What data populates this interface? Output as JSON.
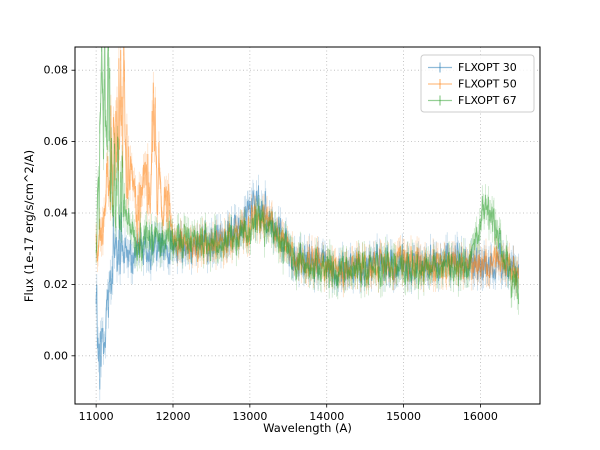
{
  "chart_data": {
    "type": "line",
    "title": "",
    "xlabel": "Wavelength (A)",
    "ylabel": "Flux (1e-17 erg/s/cm^2/A)",
    "xlim": [
      10725,
      16775
    ],
    "ylim": [
      -0.0135,
      0.0865
    ],
    "xticks": [
      11000,
      12000,
      13000,
      14000,
      15000,
      16000
    ],
    "xtick_labels": [
      "11000",
      "12000",
      "13000",
      "14000",
      "15000",
      "16000"
    ],
    "yticks": [
      0.0,
      0.02,
      0.04,
      0.06,
      0.08
    ],
    "ytick_labels": [
      "0.00",
      "0.02",
      "0.04",
      "0.06",
      "0.08"
    ],
    "x_range": [
      11000,
      16500
    ],
    "x_step": 8,
    "grid": true,
    "grid_color": "#b0b0b0",
    "background": "#ffffff",
    "legend_position": "upper right",
    "series": [
      {
        "name": "FLXOPT 30",
        "color": "#1f77b4",
        "alpha": 0.5,
        "noise": 0.0062,
        "err": 0.003,
        "noise_boost_until": 11350,
        "noise_boost": 2.2,
        "trend": [
          [
            11000,
            0.018
          ],
          [
            11060,
            -0.006
          ],
          [
            11120,
            0.006
          ],
          [
            11200,
            0.026
          ],
          [
            11350,
            0.03
          ],
          [
            11500,
            0.028
          ],
          [
            11700,
            0.03
          ],
          [
            12000,
            0.03
          ],
          [
            12300,
            0.031
          ],
          [
            12600,
            0.032
          ],
          [
            12900,
            0.036
          ],
          [
            13050,
            0.042
          ],
          [
            13200,
            0.04
          ],
          [
            13400,
            0.033
          ],
          [
            13600,
            0.027
          ],
          [
            13900,
            0.026
          ],
          [
            14200,
            0.024
          ],
          [
            14600,
            0.026
          ],
          [
            15000,
            0.026
          ],
          [
            15400,
            0.026
          ],
          [
            15800,
            0.026
          ],
          [
            16200,
            0.026
          ],
          [
            16500,
            0.025
          ]
        ]
      },
      {
        "name": "FLXOPT 50",
        "color": "#ff7f0e",
        "alpha": 0.5,
        "noise": 0.0055,
        "err": 0.003,
        "noise_boost_until": 11950,
        "noise_boost": 1.6,
        "trend": [
          [
            11000,
            0.028
          ],
          [
            11150,
            0.045
          ],
          [
            11300,
            0.074
          ],
          [
            11420,
            0.052
          ],
          [
            11550,
            0.038
          ],
          [
            11750,
            0.058
          ],
          [
            11850,
            0.048
          ],
          [
            12000,
            0.034
          ],
          [
            12200,
            0.031
          ],
          [
            12500,
            0.032
          ],
          [
            12800,
            0.033
          ],
          [
            13000,
            0.036
          ],
          [
            13200,
            0.04
          ],
          [
            13400,
            0.034
          ],
          [
            13600,
            0.027
          ],
          [
            13900,
            0.025
          ],
          [
            14200,
            0.024
          ],
          [
            14600,
            0.025
          ],
          [
            15000,
            0.026
          ],
          [
            15400,
            0.025
          ],
          [
            15800,
            0.025
          ],
          [
            16200,
            0.026
          ],
          [
            16500,
            0.023
          ]
        ]
      },
      {
        "name": "FLXOPT 67",
        "color": "#2ca02c",
        "alpha": 0.5,
        "noise": 0.0062,
        "err": 0.003,
        "noise_boost_until": 11350,
        "noise_boost": 2.0,
        "trend": [
          [
            11000,
            0.03
          ],
          [
            11080,
            0.068
          ],
          [
            11180,
            0.058
          ],
          [
            11300,
            0.044
          ],
          [
            11500,
            0.032
          ],
          [
            11700,
            0.033
          ],
          [
            12000,
            0.032
          ],
          [
            12300,
            0.032
          ],
          [
            12600,
            0.031
          ],
          [
            12900,
            0.034
          ],
          [
            13150,
            0.038
          ],
          [
            13400,
            0.032
          ],
          [
            13600,
            0.026
          ],
          [
            13900,
            0.025
          ],
          [
            14200,
            0.023
          ],
          [
            14600,
            0.025
          ],
          [
            15000,
            0.024
          ],
          [
            15400,
            0.025
          ],
          [
            15800,
            0.025
          ],
          [
            16100,
            0.042
          ],
          [
            16250,
            0.032
          ],
          [
            16400,
            0.022
          ],
          [
            16500,
            0.018
          ]
        ]
      }
    ]
  }
}
